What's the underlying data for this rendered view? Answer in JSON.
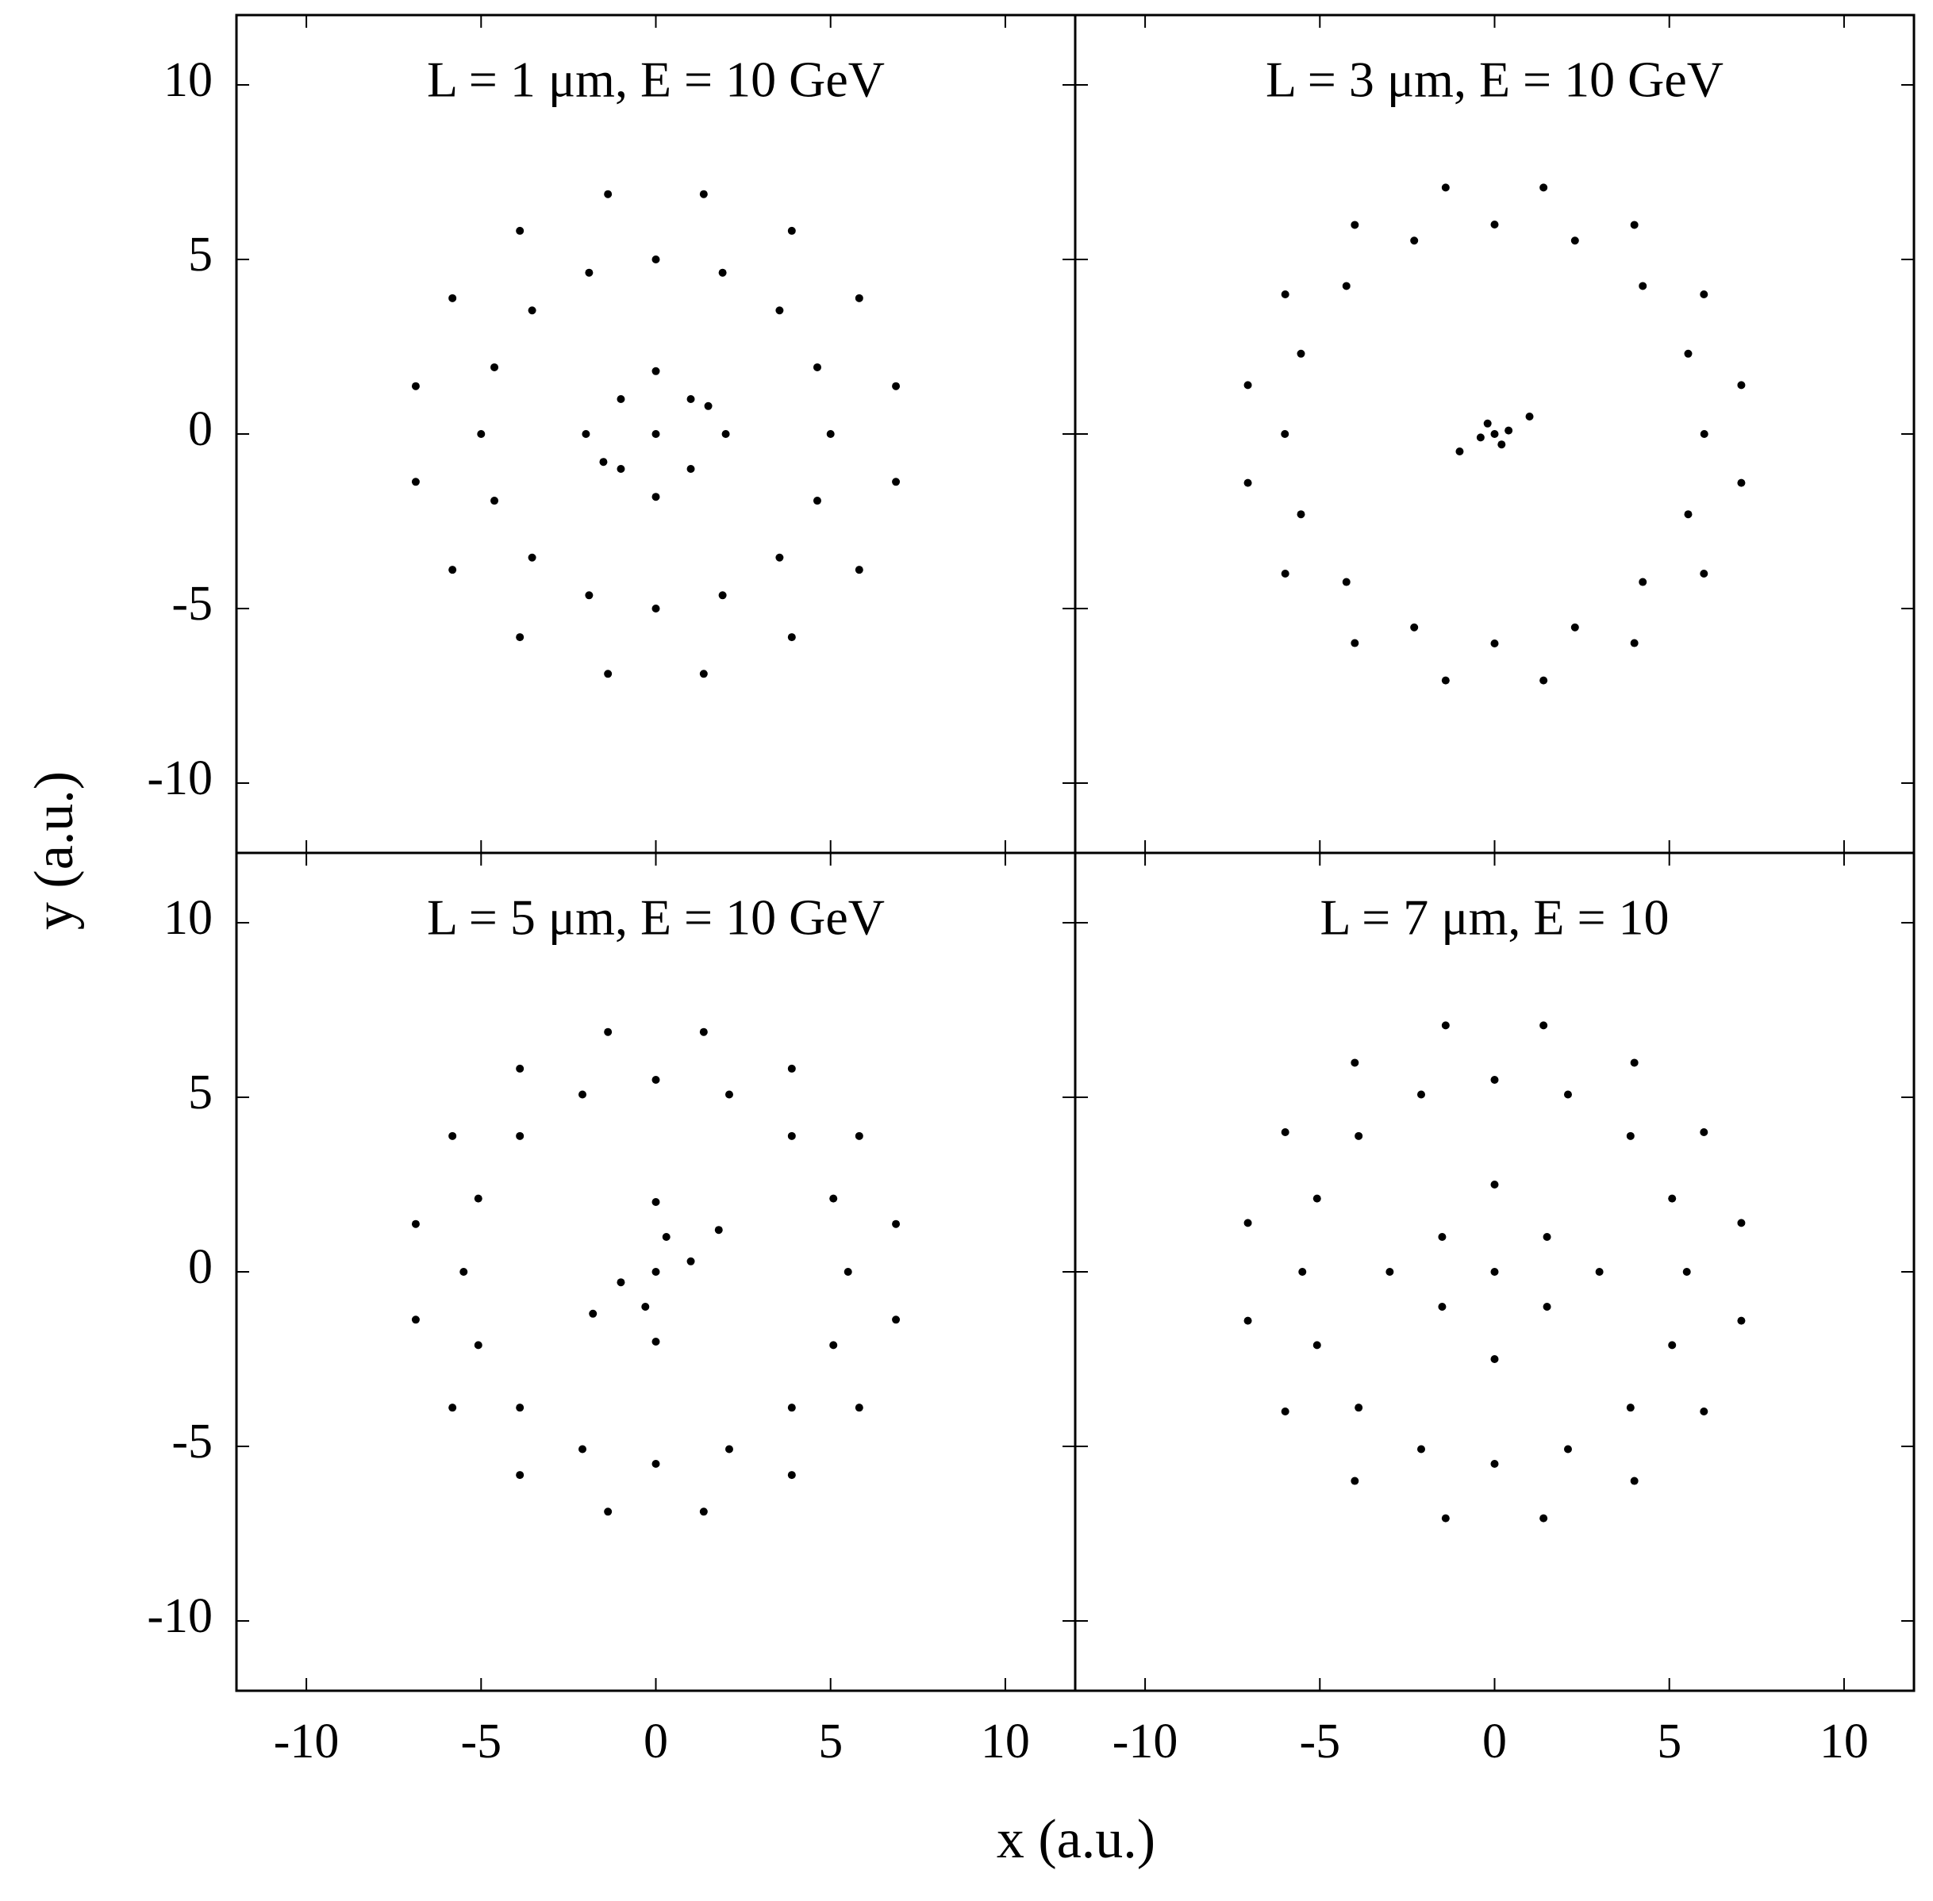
{
  "xlabel": "x (a.u.)",
  "ylabel": "y (a.u.)",
  "chart_data": [
    {
      "type": "scatter",
      "title": "L = 1 μm, E = 10 GeV",
      "color": "#000000",
      "xlim": [
        -12,
        12
      ],
      "ylim": [
        -12,
        12
      ],
      "xticks": [
        -10,
        -5,
        0,
        5,
        10
      ],
      "yticks": [
        -10,
        -5,
        0,
        5,
        10
      ],
      "x": [
        0,
        1,
        -1,
        1,
        -1,
        2,
        -2,
        0,
        0,
        1.5,
        -1.5,
        5,
        4.62,
        3.54,
        1.91,
        0,
        -1.91,
        -3.54,
        -4.62,
        -5,
        -4.62,
        -3.54,
        -1.91,
        0,
        1.91,
        3.54,
        4.62,
        6.87,
        5.82,
        3.89,
        1.37,
        -1.37,
        -3.89,
        -5.82,
        -6.87,
        -6.87,
        -5.82,
        -3.89,
        -1.37,
        1.37,
        3.89,
        5.82,
        6.87
      ],
      "values": [
        0,
        1,
        1,
        -1,
        -1,
        0,
        0,
        1.8,
        -1.8,
        0.8,
        -0.8,
        0,
        1.91,
        3.54,
        4.62,
        5,
        4.62,
        3.54,
        1.91,
        0,
        -1.91,
        -3.54,
        -4.62,
        -5,
        -4.62,
        -3.54,
        -1.91,
        1.37,
        3.89,
        5.82,
        6.87,
        6.87,
        5.82,
        3.89,
        1.37,
        -1.37,
        -3.89,
        -5.82,
        -6.87,
        -6.87,
        -5.82,
        -3.89,
        -1.37
      ]
    },
    {
      "type": "scatter",
      "title": "L = 3 μm, E = 10 GeV",
      "color": "#000000",
      "xlim": [
        -12,
        12
      ],
      "ylim": [
        -12,
        12
      ],
      "xticks": [
        -10,
        -5,
        0,
        5,
        10
      ],
      "yticks": [
        -10,
        -5,
        0,
        5,
        10
      ],
      "x": [
        0,
        0.4,
        -0.4,
        0.2,
        -0.2,
        1,
        -1,
        6,
        5.54,
        4.24,
        2.3,
        0,
        -2.3,
        -4.24,
        -5.54,
        -6,
        -5.54,
        -4.24,
        -2.3,
        0,
        2.3,
        4.24,
        5.54,
        7.06,
        5.99,
        4,
        1.4,
        -1.4,
        -4,
        -5.99,
        -7.06,
        -7.06,
        -5.99,
        -4,
        -1.4,
        1.4,
        4,
        5.99,
        7.06
      ],
      "values": [
        0,
        0.1,
        -0.1,
        -0.3,
        0.3,
        0.5,
        -0.5,
        0,
        2.3,
        4.24,
        5.54,
        6,
        5.54,
        4.24,
        2.3,
        0,
        -2.3,
        -4.24,
        -5.54,
        -6,
        -5.54,
        -4.24,
        -2.3,
        1.4,
        4,
        5.99,
        7.06,
        7.06,
        5.99,
        4,
        1.4,
        -1.4,
        -4,
        -5.99,
        -7.06,
        -7.06,
        -5.99,
        -4,
        -1.4
      ]
    },
    {
      "type": "scatter",
      "title": "L = 5 μm, E = 10 GeV",
      "color": "#000000",
      "xlim": [
        -12,
        12
      ],
      "ylim": [
        -12,
        12
      ],
      "xticks": [
        -10,
        -5,
        0,
        5,
        10
      ],
      "yticks": [
        -10,
        -5,
        0,
        5,
        10
      ],
      "x": [
        0,
        0.3,
        -0.3,
        0,
        0,
        1,
        -1,
        1.8,
        -1.8,
        5.5,
        5.08,
        3.89,
        2.1,
        0,
        -2.1,
        -3.89,
        -5.08,
        -5.5,
        -5.08,
        -3.89,
        -2.1,
        0,
        2.1,
        3.89,
        5.08,
        6.87,
        5.82,
        3.89,
        1.37,
        -1.37,
        -3.89,
        -5.82,
        -6.87,
        -6.87,
        -5.82,
        -3.89,
        -1.37,
        1.37,
        3.89,
        5.82,
        6.87
      ],
      "values": [
        0,
        1,
        -1,
        2,
        -2,
        0.3,
        -0.3,
        1.2,
        -1.2,
        0,
        2.1,
        3.89,
        5.08,
        5.5,
        5.08,
        3.89,
        2.1,
        0,
        -2.1,
        -3.89,
        -5.08,
        -5.5,
        -5.08,
        -3.89,
        -2.1,
        1.37,
        3.89,
        5.82,
        6.87,
        6.87,
        5.82,
        3.89,
        1.37,
        -1.37,
        -3.89,
        -5.82,
        -6.87,
        -6.87,
        -5.82,
        -3.89,
        -1.37
      ]
    },
    {
      "type": "scatter",
      "title": "L = 7 μm, E = 10",
      "color": "#000000",
      "xlim": [
        -12,
        12
      ],
      "ylim": [
        -12,
        12
      ],
      "xticks": [
        -10,
        -5,
        0,
        5,
        10
      ],
      "yticks": [
        -10,
        -5,
        0,
        5,
        10
      ],
      "x": [
        0,
        1.5,
        -1.5,
        1.5,
        -1.5,
        3,
        -3,
        0,
        0,
        5.5,
        5.08,
        3.89,
        2.1,
        0,
        -2.1,
        -3.89,
        -5.08,
        -5.5,
        -5.08,
        -3.89,
        -2.1,
        0,
        2.1,
        3.89,
        5.08,
        7.06,
        5.99,
        4,
        1.4,
        -1.4,
        -4,
        -5.99,
        -7.06,
        -7.06,
        -5.99,
        -4,
        -1.4,
        1.4,
        4,
        5.99,
        7.06
      ],
      "values": [
        0,
        1,
        1,
        -1,
        -1,
        0,
        0,
        2.5,
        -2.5,
        0,
        2.1,
        3.89,
        5.08,
        5.5,
        5.08,
        3.89,
        2.1,
        0,
        -2.1,
        -3.89,
        -5.08,
        -5.5,
        -5.08,
        -3.89,
        -2.1,
        1.4,
        4,
        5.99,
        7.06,
        7.06,
        5.99,
        4,
        1.4,
        -1.4,
        -4,
        -5.99,
        -7.06,
        -7.06,
        -5.99,
        -4,
        -1.4
      ]
    }
  ]
}
